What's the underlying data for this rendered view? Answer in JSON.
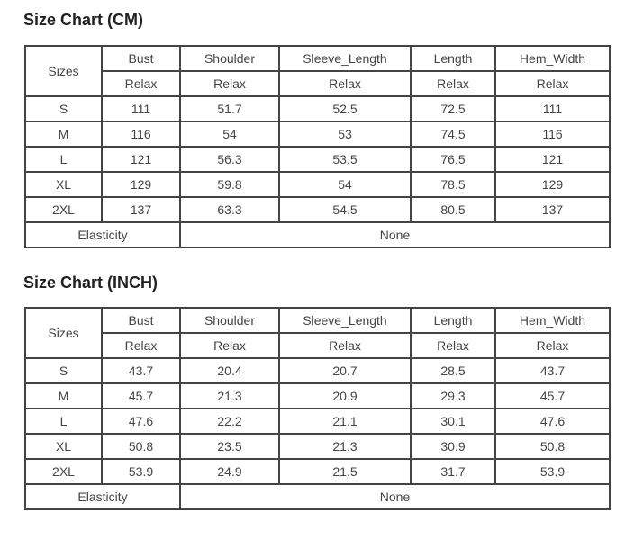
{
  "tables": [
    {
      "title": "Size Chart (CM)",
      "sizes_label": "Sizes",
      "columns": [
        "Bust",
        "Shoulder",
        "Sleeve_Length",
        "Length",
        "Hem_Width"
      ],
      "subheader": [
        "Relax",
        "Relax",
        "Relax",
        "Relax",
        "Relax"
      ],
      "rows": [
        [
          "S",
          "111",
          "51.7",
          "52.5",
          "72.5",
          "111"
        ],
        [
          "M",
          "116",
          "54",
          "53",
          "74.5",
          "116"
        ],
        [
          "L",
          "121",
          "56.3",
          "53.5",
          "76.5",
          "121"
        ],
        [
          "XL",
          "129",
          "59.8",
          "54",
          "78.5",
          "129"
        ],
        [
          "2XL",
          "137",
          "63.3",
          "54.5",
          "80.5",
          "137"
        ]
      ],
      "elasticity_label": "Elasticity",
      "elasticity_value": "None"
    },
    {
      "title": "Size Chart (INCH)",
      "sizes_label": "Sizes",
      "columns": [
        "Bust",
        "Shoulder",
        "Sleeve_Length",
        "Length",
        "Hem_Width"
      ],
      "subheader": [
        "Relax",
        "Relax",
        "Relax",
        "Relax",
        "Relax"
      ],
      "rows": [
        [
          "S",
          "43.7",
          "20.4",
          "20.7",
          "28.5",
          "43.7"
        ],
        [
          "M",
          "45.7",
          "21.3",
          "20.9",
          "29.3",
          "45.7"
        ],
        [
          "L",
          "47.6",
          "22.2",
          "21.1",
          "30.1",
          "47.6"
        ],
        [
          "XL",
          "50.8",
          "23.5",
          "21.3",
          "30.9",
          "50.8"
        ],
        [
          "2XL",
          "53.9",
          "24.9",
          "21.5",
          "31.7",
          "53.9"
        ]
      ],
      "elasticity_label": "Elasticity",
      "elasticity_value": "None"
    }
  ]
}
